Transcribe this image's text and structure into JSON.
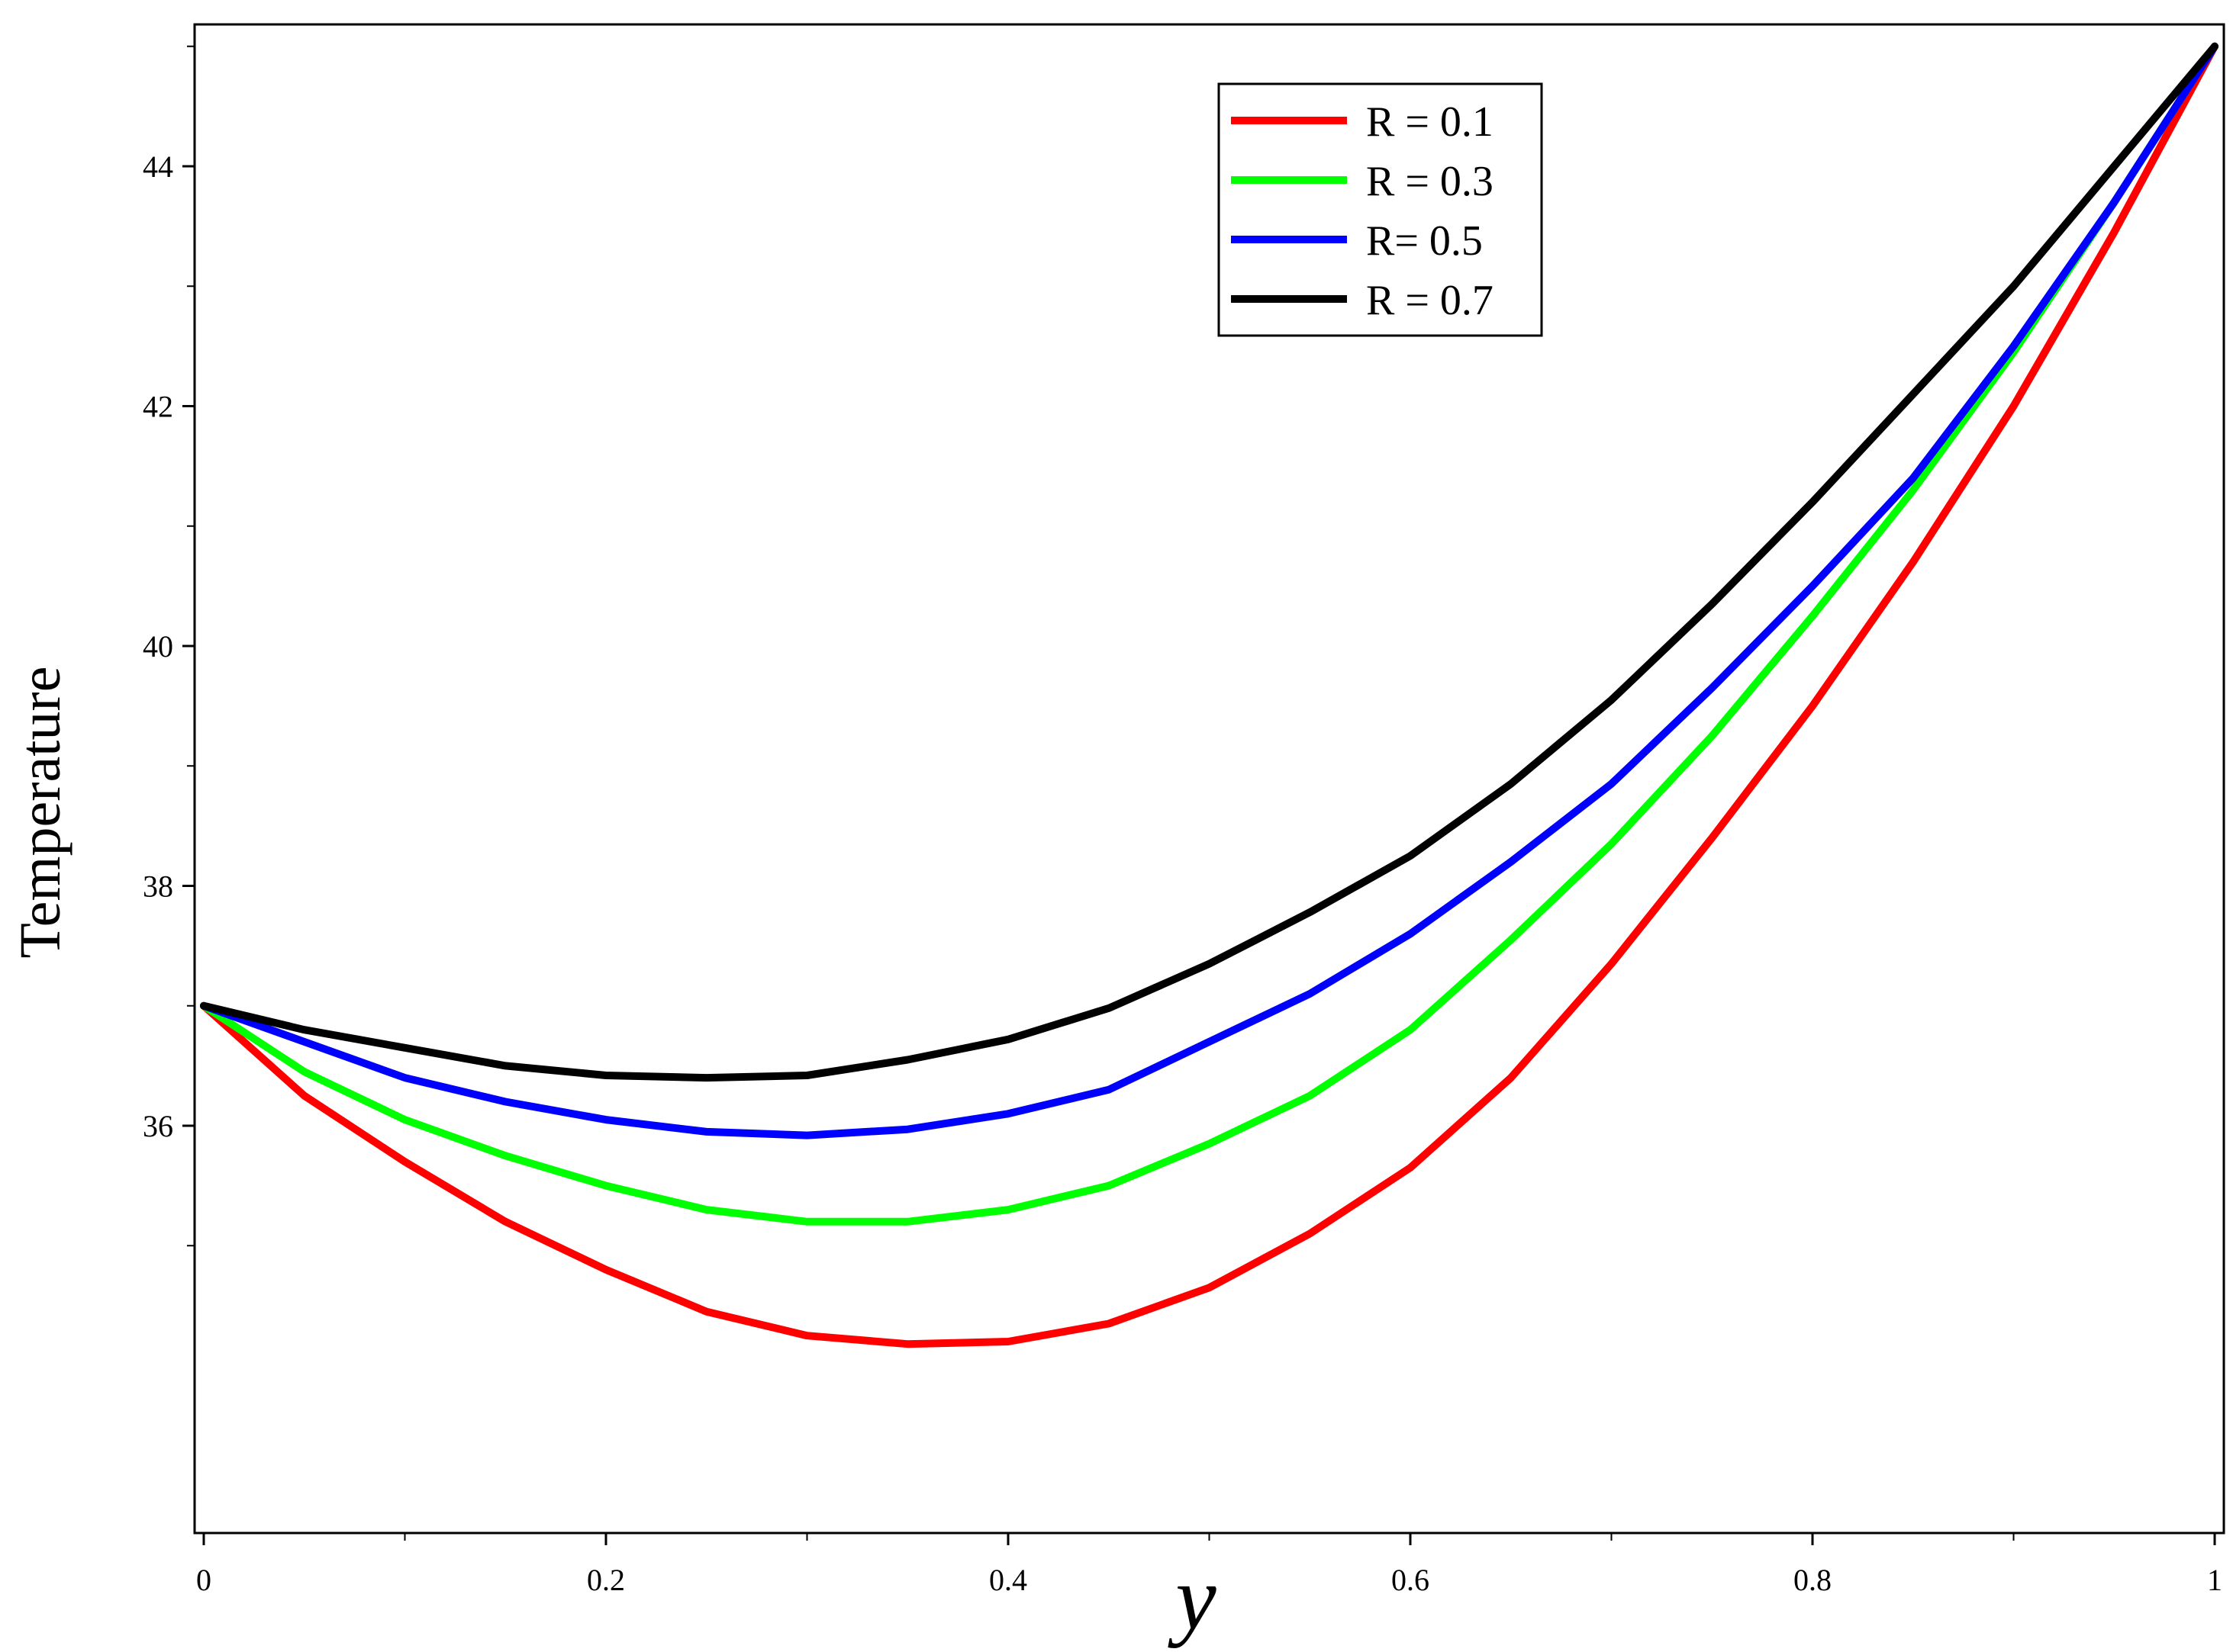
{
  "chart_data": {
    "type": "line",
    "title": "",
    "xlabel": "y",
    "ylabel": "Temperature",
    "xlim": [
      0,
      1
    ],
    "ylim": [
      34,
      45
    ],
    "xticks": [
      0,
      0.2,
      0.4,
      0.6,
      0.8,
      1
    ],
    "xtick_labels": [
      "0",
      "0.2",
      "0.4",
      "0.6",
      "0.8",
      "1"
    ],
    "yticks": [
      36,
      38,
      40,
      42,
      44
    ],
    "ytick_labels": [
      "36",
      "38",
      "40",
      "42",
      "44"
    ],
    "grid": false,
    "legend_position": "top-right",
    "x": [
      0,
      0.05,
      0.1,
      0.15,
      0.2,
      0.25,
      0.3,
      0.35,
      0.4,
      0.45,
      0.5,
      0.55,
      0.6,
      0.65,
      0.7,
      0.75,
      0.8,
      0.85,
      0.9,
      0.95,
      1
    ],
    "series": [
      {
        "name": "R = 0.1",
        "color": "#ff0000",
        "values": [
          37,
          36.25,
          35.7,
          35.2,
          34.8,
          34.45,
          34.25,
          34.18,
          34.2,
          34.35,
          34.65,
          35.1,
          35.65,
          36.4,
          37.35,
          38.4,
          39.5,
          40.7,
          42,
          43.45,
          45
        ]
      },
      {
        "name": "R = 0.3",
        "color": "#00ff00",
        "values": [
          37,
          36.45,
          36.05,
          35.75,
          35.5,
          35.3,
          35.2,
          35.2,
          35.3,
          35.5,
          35.85,
          36.25,
          36.8,
          37.55,
          38.35,
          39.25,
          40.25,
          41.3,
          42.45,
          43.7,
          45
        ]
      },
      {
        "name": "R= 0.5",
        "color": "#0000ff",
        "values": [
          37,
          36.7,
          36.4,
          36.2,
          36.05,
          35.95,
          35.92,
          35.97,
          36.1,
          36.3,
          36.7,
          37.1,
          37.6,
          38.2,
          38.85,
          39.65,
          40.5,
          41.4,
          42.5,
          43.7,
          45
        ]
      },
      {
        "name": "R = 0.7",
        "color": "#000000",
        "values": [
          37,
          36.8,
          36.65,
          36.5,
          36.42,
          36.4,
          36.42,
          36.55,
          36.72,
          36.98,
          37.35,
          37.78,
          38.25,
          38.85,
          39.55,
          40.35,
          41.2,
          42.1,
          43,
          44,
          45
        ]
      }
    ]
  }
}
